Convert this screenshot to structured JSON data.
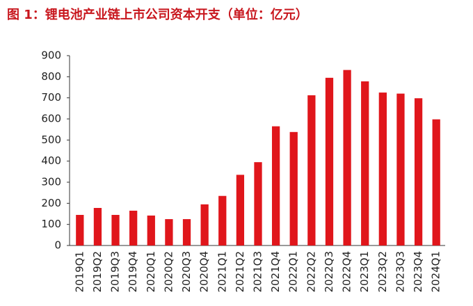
{
  "chart_data": {
    "type": "bar",
    "title": "图 1：锂电池产业链上市公司资本开支（单位：亿元）",
    "categories": [
      "2019Q1",
      "2019Q2",
      "2019Q3",
      "2019Q4",
      "2020Q1",
      "2020Q2",
      "2020Q3",
      "2020Q4",
      "2021Q1",
      "2021Q2",
      "2021Q3",
      "2021Q4",
      "2022Q1",
      "2022Q2",
      "2022Q3",
      "2022Q4",
      "2023Q1",
      "2023Q2",
      "2023Q3",
      "2023Q4",
      "2024Q1"
    ],
    "values": [
      145,
      178,
      145,
      165,
      142,
      125,
      125,
      195,
      235,
      335,
      395,
      565,
      538,
      712,
      795,
      832,
      778,
      725,
      720,
      698,
      598
    ],
    "color": "#e0161b",
    "ylim": [
      0,
      900
    ],
    "yticks": [
      0,
      100,
      200,
      300,
      400,
      500,
      600,
      700,
      800,
      900
    ],
    "grid": false
  }
}
